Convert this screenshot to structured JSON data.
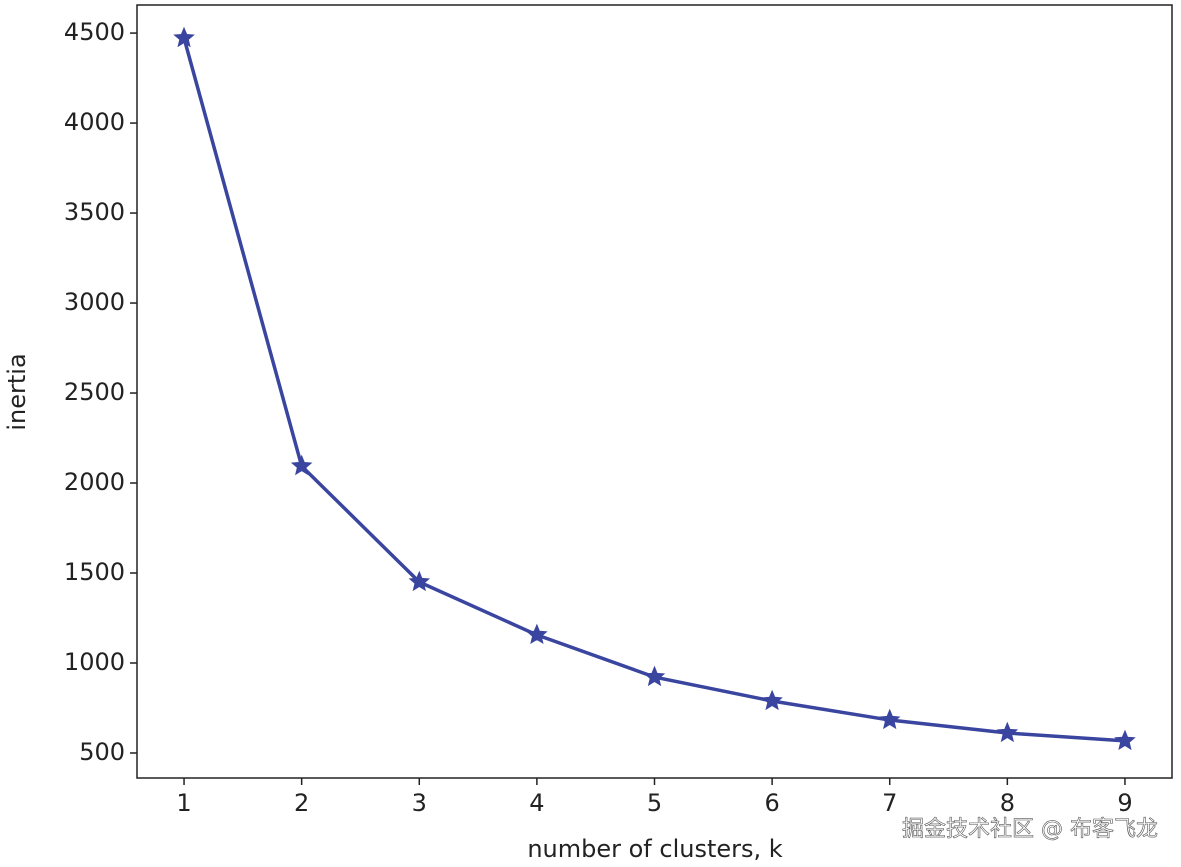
{
  "chart_data": {
    "type": "line",
    "x_label": "number of clusters, k",
    "y_label": "inertia",
    "x": [
      1,
      2,
      3,
      4,
      5,
      6,
      7,
      8,
      9
    ],
    "series": [
      {
        "name": "inertia",
        "color": "#3a45a0",
        "marker": "star",
        "values": [
          4472,
          2094,
          1450,
          1156,
          922,
          789,
          683,
          611,
          567
        ]
      }
    ],
    "xlim": [
      0.6,
      9.4
    ],
    "ylim": [
      361,
      4656
    ],
    "xticks": [
      1,
      2,
      3,
      4,
      5,
      6,
      7,
      8,
      9
    ],
    "yticks": [
      500,
      1000,
      1500,
      2000,
      2500,
      3000,
      3500,
      4000,
      4500
    ],
    "grid": false
  },
  "watermark": "掘金技术社区 @ 布客飞龙"
}
